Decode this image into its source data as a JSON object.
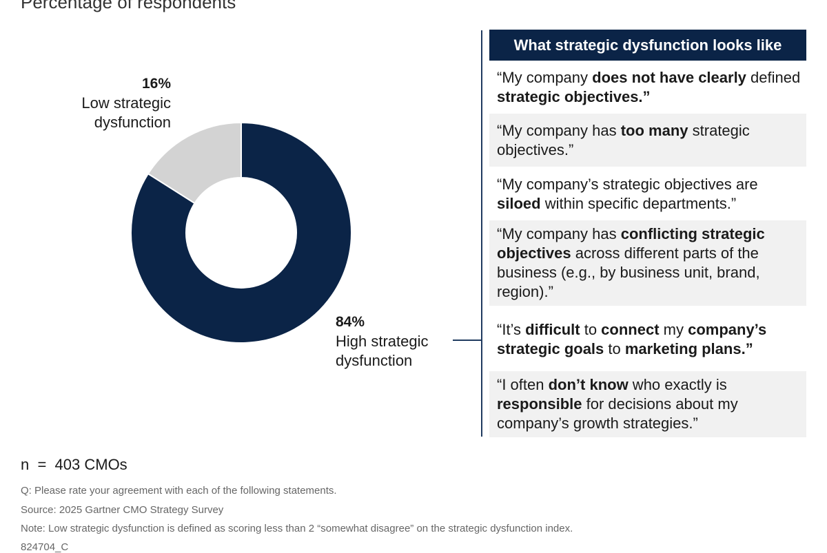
{
  "subtitle": "Percentage of respondents",
  "chart_data": {
    "type": "pie",
    "variant": "donut",
    "slices": [
      {
        "name": "High strategic dysfunction",
        "label_value": "84%",
        "value": 84,
        "color": "#0b2447"
      },
      {
        "name": "Low strategic dysfunction",
        "label_value": "16%",
        "value": 16,
        "color": "#d3d3d3"
      }
    ]
  },
  "panel": {
    "header": "What strategic dysfunction looks like",
    "quotes": [
      {
        "segments": [
          {
            "t": "“My company "
          },
          {
            "t": "does not have clearly",
            "b": true
          },
          {
            "t": " defined "
          },
          {
            "t": "strategic objectives.”",
            "b": true
          }
        ],
        "shaded": false
      },
      {
        "segments": [
          {
            "t": "“My company has "
          },
          {
            "t": "too many",
            "b": true
          },
          {
            "t": " strategic objectives.”"
          }
        ],
        "shaded": true
      },
      {
        "segments": [
          {
            "t": "“My company’s strategic objectives are "
          },
          {
            "t": "siloed",
            "b": true
          },
          {
            "t": " within specific departments.”"
          }
        ],
        "shaded": false
      },
      {
        "segments": [
          {
            "t": "“My company has "
          },
          {
            "t": "conflicting strategic objectives",
            "b": true
          },
          {
            "t": " across different parts of the business (e.g., by business unit, brand, region).”"
          }
        ],
        "shaded": true
      },
      {
        "segments": [
          {
            "t": "“It’s "
          },
          {
            "t": "difficult",
            "b": true
          },
          {
            "t": " to "
          },
          {
            "t": "connect",
            "b": true
          },
          {
            "t": " my "
          },
          {
            "t": "company’s strategic goals",
            "b": true
          },
          {
            "t": " to "
          },
          {
            "t": "marketing plans.”",
            "b": true
          }
        ],
        "shaded": false
      },
      {
        "segments": [
          {
            "t": "“I often "
          },
          {
            "t": "don’t know",
            "b": true
          },
          {
            "t": " who exactly is "
          },
          {
            "t": "responsible",
            "b": true
          },
          {
            "t": " for decisions about my company’s growth strategies.”"
          }
        ],
        "shaded": true
      }
    ]
  },
  "footer": {
    "n": "n  =  403 CMOs",
    "question": "Q: Please rate your agreement with each of the following statements.",
    "source": "Source: 2025 Gartner CMO Strategy Survey",
    "note": "Note: Low strategic dysfunction is defined as scoring less than 2 “somewhat disagree” on the strategic dysfunction index.",
    "id": "824704_C"
  }
}
